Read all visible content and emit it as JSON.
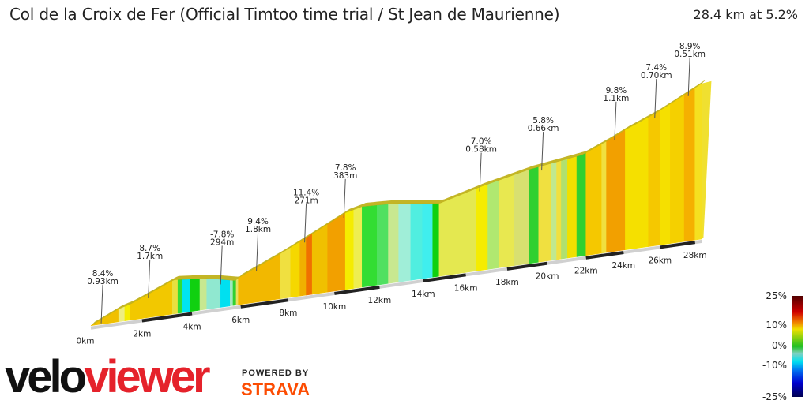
{
  "header": {
    "title": "Col de la Croix de Fer (Official Timtoo time trial / St Jean de Maurienne)",
    "summary": "28.4 km at 5.2%"
  },
  "chart_data": {
    "type": "area",
    "style": "3d-elevation-profile",
    "distance_km": 28.4,
    "avg_gradient_pct": 5.2,
    "x_ticks": [
      "0km",
      "2km",
      "4km",
      "6km",
      "8km",
      "10km",
      "12km",
      "14km",
      "16km",
      "18km",
      "20km",
      "22km",
      "24km",
      "26km",
      "28km"
    ],
    "x_tick_values": [
      0,
      2,
      4,
      6,
      8,
      10,
      12,
      14,
      16,
      18,
      20,
      22,
      24,
      26,
      28
    ],
    "elevation_gain_profile_m": [
      [
        0,
        0
      ],
      [
        1.08,
        120
      ],
      [
        1.54,
        150
      ],
      [
        3.27,
        322
      ],
      [
        4.6,
        292
      ],
      [
        5.78,
        232
      ],
      [
        5.9,
        255
      ],
      [
        7.67,
        428
      ],
      [
        10.48,
        728
      ],
      [
        11.22,
        765
      ],
      [
        12.7,
        750
      ],
      [
        14.74,
        690
      ],
      [
        16.74,
        795
      ],
      [
        19.08,
        892
      ],
      [
        21.8,
        960
      ],
      [
        23.2,
        1065
      ],
      [
        24.09,
        1140
      ],
      [
        25.8,
        1260
      ],
      [
        28.4,
        1478
      ]
    ],
    "segments": [
      {
        "from": 0,
        "to": 1.08,
        "color": "#f0c000"
      },
      {
        "from": 1.08,
        "to": 1.32,
        "color": "#eeee80"
      },
      {
        "from": 1.32,
        "to": 1.54,
        "color": "#f5ec00"
      },
      {
        "from": 1.54,
        "to": 3.21,
        "color": "#f2c800"
      },
      {
        "from": 3.21,
        "to": 3.43,
        "color": "#e8e040"
      },
      {
        "from": 3.43,
        "to": 3.62,
        "color": "#33dd33"
      },
      {
        "from": 3.62,
        "to": 3.94,
        "color": "#00e5f0"
      },
      {
        "from": 3.94,
        "to": 4.32,
        "color": "#10d010"
      },
      {
        "from": 4.32,
        "to": 4.6,
        "color": "#c8e890"
      },
      {
        "from": 4.6,
        "to": 5.17,
        "color": "#90e8d0"
      },
      {
        "from": 5.17,
        "to": 5.56,
        "color": "#00e0f0"
      },
      {
        "from": 5.56,
        "to": 5.68,
        "color": "#a0e8c0"
      },
      {
        "from": 5.68,
        "to": 5.81,
        "color": "#30d030"
      },
      {
        "from": 5.81,
        "to": 5.9,
        "color": "#e8e060"
      },
      {
        "from": 5.9,
        "to": 7.67,
        "color": "#f2b800"
      },
      {
        "from": 7.67,
        "to": 8.1,
        "color": "#f0e040"
      },
      {
        "from": 8.1,
        "to": 8.5,
        "color": "#f5d800"
      },
      {
        "from": 8.5,
        "to": 8.77,
        "color": "#f0b000"
      },
      {
        "from": 8.77,
        "to": 9.03,
        "color": "#f07000"
      },
      {
        "from": 9.03,
        "to": 9.7,
        "color": "#f0c000"
      },
      {
        "from": 9.7,
        "to": 10.48,
        "color": "#f2a000"
      },
      {
        "from": 10.48,
        "to": 10.85,
        "color": "#f5ec00"
      },
      {
        "from": 10.85,
        "to": 11.22,
        "color": "#eeee50"
      },
      {
        "from": 11.22,
        "to": 11.89,
        "color": "#33dd33"
      },
      {
        "from": 11.89,
        "to": 12.4,
        "color": "#50e060"
      },
      {
        "from": 12.4,
        "to": 12.87,
        "color": "#c8e890"
      },
      {
        "from": 12.87,
        "to": 13.42,
        "color": "#a0eed8"
      },
      {
        "from": 13.42,
        "to": 13.96,
        "color": "#50eee0"
      },
      {
        "from": 13.96,
        "to": 14.44,
        "color": "#40eeee"
      },
      {
        "from": 14.44,
        "to": 14.74,
        "color": "#10d010"
      },
      {
        "from": 14.74,
        "to": 16.51,
        "color": "#e4e850"
      },
      {
        "from": 16.51,
        "to": 17.06,
        "color": "#f5ec00"
      },
      {
        "from": 17.06,
        "to": 17.61,
        "color": "#b0e870"
      },
      {
        "from": 17.61,
        "to": 18.35,
        "color": "#e8e850"
      },
      {
        "from": 18.35,
        "to": 19.08,
        "color": "#d8e070"
      },
      {
        "from": 19.08,
        "to": 19.57,
        "color": "#30d030"
      },
      {
        "from": 19.57,
        "to": 20.2,
        "color": "#f0e040"
      },
      {
        "from": 20.2,
        "to": 20.48,
        "color": "#c0e890"
      },
      {
        "from": 20.48,
        "to": 20.72,
        "color": "#f0e040"
      },
      {
        "from": 20.72,
        "to": 21.04,
        "color": "#b0e070"
      },
      {
        "from": 21.04,
        "to": 21.52,
        "color": "#f0e000"
      },
      {
        "from": 21.52,
        "to": 22.0,
        "color": "#30d030"
      },
      {
        "from": 22.0,
        "to": 22.83,
        "color": "#f5c800"
      },
      {
        "from": 22.83,
        "to": 23.08,
        "color": "#f0e040"
      },
      {
        "from": 23.08,
        "to": 24.09,
        "color": "#f2a000"
      },
      {
        "from": 24.09,
        "to": 25.36,
        "color": "#f5e000"
      },
      {
        "from": 25.36,
        "to": 26.0,
        "color": "#f5c800"
      },
      {
        "from": 26.0,
        "to": 26.58,
        "color": "#f5e000"
      },
      {
        "from": 26.58,
        "to": 27.38,
        "color": "#f5d000"
      },
      {
        "from": 27.38,
        "to": 28.0,
        "color": "#f5b000"
      },
      {
        "from": 28.0,
        "to": 28.4,
        "color": "#f5e020"
      }
    ],
    "annotations": [
      {
        "km": 0.46,
        "gradient": "8.4%",
        "length": "0.93km"
      },
      {
        "km": 2.31,
        "gradient": "8.7%",
        "length": "1.7km"
      },
      {
        "km": 5.23,
        "gradient": "-7.8%",
        "length": "294m"
      },
      {
        "km": 6.72,
        "gradient": "9.4%",
        "length": "1.8km"
      },
      {
        "km": 8.77,
        "gradient": "11.4%",
        "length": "271m"
      },
      {
        "km": 10.48,
        "gradient": "7.8%",
        "length": "383m"
      },
      {
        "km": 16.74,
        "gradient": "7.0%",
        "length": "0.58km"
      },
      {
        "km": 19.8,
        "gradient": "5.8%",
        "length": "0.66km"
      },
      {
        "km": 23.6,
        "gradient": "9.8%",
        "length": "1.1km"
      },
      {
        "km": 25.8,
        "gradient": "7.4%",
        "length": "0.70km"
      },
      {
        "km": 27.7,
        "gradient": "8.9%",
        "length": "0.51km"
      }
    ],
    "legend": {
      "labels": [
        "25%",
        "10%",
        "0%",
        "-10%",
        "-25%"
      ],
      "colors": [
        "#500000",
        "#d00000",
        "#f08000",
        "#f0e000",
        "#20c020",
        "#80d0c0",
        "#00e0f0",
        "#0070f0",
        "#0000d0",
        "#000050"
      ]
    }
  },
  "branding": {
    "logo_velo": "velo",
    "logo_viewer": "viewer",
    "powered_by": "POWERED BY",
    "strava": "STRAVA",
    "strava_color": "#fc4c02",
    "viewer_color": "#e5222b"
  }
}
